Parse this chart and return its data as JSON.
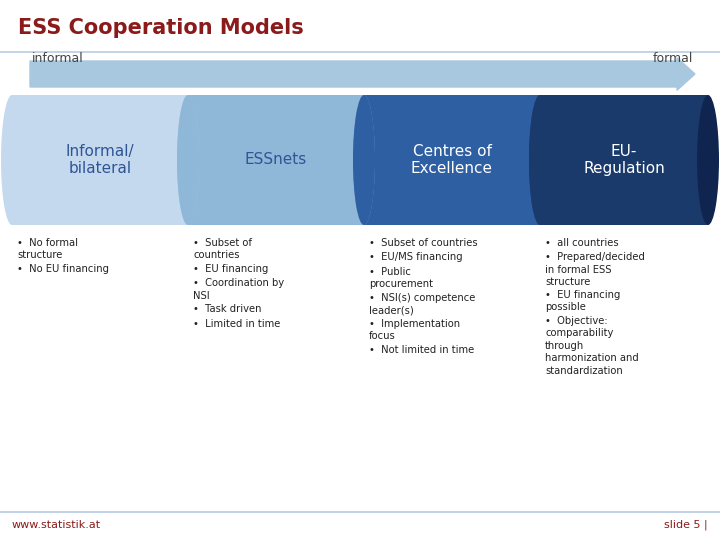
{
  "title": "ESS Cooperation Models",
  "title_color": "#8B1A1A",
  "title_fontsize": 15,
  "arrow_label_left": "informal",
  "arrow_label_right": "formal",
  "arrow_color_light": "#A8C8E0",
  "arrow_color_dark": "#5A90B8",
  "boxes": [
    {
      "label": "Informal/\nbilateral",
      "color_main": "#C5D9EE",
      "color_dark": "#A8C4E0",
      "text_color": "#2F5597"
    },
    {
      "label": "ESSnets",
      "color_main": "#8FB8D8",
      "color_dark": "#6A9FC0",
      "text_color": "#2F5597"
    },
    {
      "label": "Centres of\nExcellence",
      "color_main": "#2E5FA3",
      "color_dark": "#1A4080",
      "text_color": "#FFFFFF"
    },
    {
      "label": "EU-\nRegulation",
      "color_main": "#1A3A6B",
      "color_dark": "#0F2550",
      "text_color": "#FFFFFF"
    }
  ],
  "bullet_cols": [
    [
      "No formal\nstructure",
      "No EU financing"
    ],
    [
      "Subset of\ncountries",
      "EU financing",
      "Coordination by\nNSI",
      "Task driven",
      "Limited in time"
    ],
    [
      "Subset of countries",
      "EU/MS financing",
      "Public\nprocurement",
      "NSI(s) competence\nleader(s)",
      "Implementation\nfocus",
      "Not limited in time"
    ],
    [
      "all countries",
      "Prepared/decided\nin formal ESS\nstructure",
      "EU financing\npossible",
      "Objective:\ncomparability\nthrough\nharmonization and\nstandardization"
    ]
  ],
  "footer_left": "www.statistik.at",
  "footer_right": "slide 5 |",
  "footer_color": "#8B1A1A",
  "bg_color": "#FFFFFF",
  "line_color": "#B8CCE4"
}
